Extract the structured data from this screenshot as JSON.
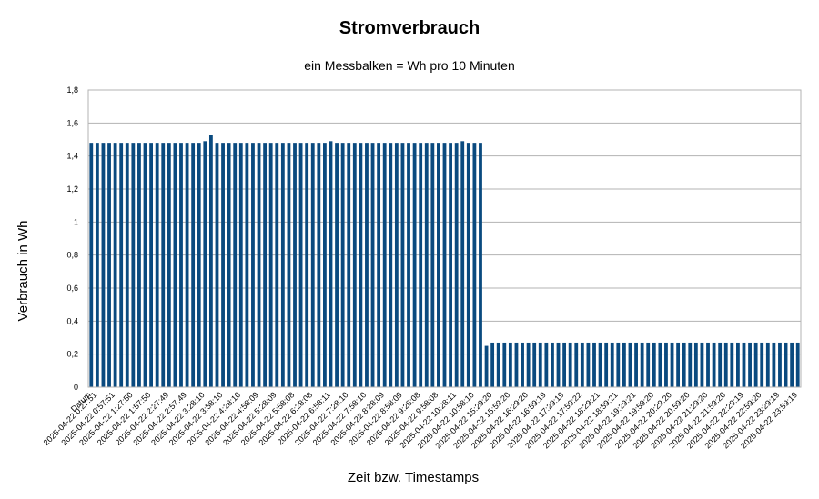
{
  "chart_data": {
    "type": "bar",
    "title": "Stromverbrauch",
    "subtitle": "ein Messbalken = Wh pro 10 Minuten",
    "xlabel": "Zeit bzw. Timestamps",
    "ylabel": "Verbrauch in Wh",
    "ylim": [
      0,
      1.8
    ],
    "yticks": [
      "0",
      "0,2",
      "0,4",
      "0,6",
      "0,8",
      "1",
      "1,2",
      "1,4",
      "1,6",
      "1,8"
    ],
    "grid": true,
    "bar_color": "#0a4a7f",
    "category_labels": [
      {
        "index": 0,
        "label": "Datum"
      },
      {
        "index": 1,
        "label": "2025-04-22 0:27:51"
      },
      {
        "index": 4,
        "label": "2025-04-22 0:57:51"
      },
      {
        "index": 7,
        "label": "2025-04-22 1:27:50"
      },
      {
        "index": 10,
        "label": "2025-04-22 1:57:50"
      },
      {
        "index": 13,
        "label": "2025-04-22 2:27:49"
      },
      {
        "index": 16,
        "label": "2025-04-22 2:57:49"
      },
      {
        "index": 19,
        "label": "2025-04-22 3:28:10"
      },
      {
        "index": 22,
        "label": "2025-04-22 3:58:10"
      },
      {
        "index": 25,
        "label": "2025-04-22 4:28:10"
      },
      {
        "index": 28,
        "label": "2025-04-22 4:58:09"
      },
      {
        "index": 31,
        "label": "2025-04-22 5:28:09"
      },
      {
        "index": 34,
        "label": "2025-04-22 5:58:08"
      },
      {
        "index": 37,
        "label": "2025-04-22 6:28:08"
      },
      {
        "index": 40,
        "label": "2025-04-22 6:58:11"
      },
      {
        "index": 43,
        "label": "2025-04-22 7:28:10"
      },
      {
        "index": 46,
        "label": "2025-04-22 7:58:10"
      },
      {
        "index": 49,
        "label": "2025-04-22 8:28:09"
      },
      {
        "index": 52,
        "label": "2025-04-22 8:58:09"
      },
      {
        "index": 55,
        "label": "2025-04-22 9:28:08"
      },
      {
        "index": 58,
        "label": "2025-04-22 9:58:08"
      },
      {
        "index": 61,
        "label": "2025-04-22 10:28:11"
      },
      {
        "index": 64,
        "label": "2025-04-22 10:58:10"
      },
      {
        "index": 67,
        "label": "2025-04-22 15:29:20"
      },
      {
        "index": 70,
        "label": "2025-04-22 15:59:20"
      },
      {
        "index": 73,
        "label": "2025-04-22 16:29:20"
      },
      {
        "index": 76,
        "label": "2025-04-22 16:59:19"
      },
      {
        "index": 79,
        "label": "2025-04-22 17:29:19"
      },
      {
        "index": 82,
        "label": "2025-04-22 17:59:22"
      },
      {
        "index": 85,
        "label": "2025-04-22 18:29:21"
      },
      {
        "index": 88,
        "label": "2025-04-22 18:59:21"
      },
      {
        "index": 91,
        "label": "2025-04-22 19:29:21"
      },
      {
        "index": 94,
        "label": "2025-04-22 19:59:20"
      },
      {
        "index": 97,
        "label": "2025-04-22 20:29:20"
      },
      {
        "index": 100,
        "label": "2025-04-22 20:59:20"
      },
      {
        "index": 103,
        "label": "2025-04-22 21:29:20"
      },
      {
        "index": 106,
        "label": "2025-04-22 21:59:20"
      },
      {
        "index": 109,
        "label": "2025-04-22 22:29:19"
      },
      {
        "index": 112,
        "label": "2025-04-22 22:59:20"
      },
      {
        "index": 115,
        "label": "2025-04-22 23:29:19"
      },
      {
        "index": 118,
        "label": "2025-04-22 23:59:19"
      }
    ],
    "values": [
      1.48,
      1.48,
      1.48,
      1.48,
      1.48,
      1.48,
      1.48,
      1.48,
      1.48,
      1.48,
      1.48,
      1.48,
      1.48,
      1.48,
      1.48,
      1.48,
      1.48,
      1.48,
      1.48,
      1.49,
      1.53,
      1.48,
      1.48,
      1.48,
      1.48,
      1.48,
      1.48,
      1.48,
      1.48,
      1.48,
      1.48,
      1.48,
      1.48,
      1.48,
      1.48,
      1.48,
      1.48,
      1.48,
      1.48,
      1.48,
      1.49,
      1.48,
      1.48,
      1.48,
      1.48,
      1.48,
      1.48,
      1.48,
      1.48,
      1.48,
      1.48,
      1.48,
      1.48,
      1.48,
      1.48,
      1.48,
      1.48,
      1.48,
      1.48,
      1.48,
      1.48,
      1.48,
      1.49,
      1.48,
      1.48,
      1.48,
      0.25,
      0.27,
      0.27,
      0.27,
      0.27,
      0.27,
      0.27,
      0.27,
      0.27,
      0.27,
      0.27,
      0.27,
      0.27,
      0.27,
      0.27,
      0.27,
      0.27,
      0.27,
      0.27,
      0.27,
      0.27,
      0.27,
      0.27,
      0.27,
      0.27,
      0.27,
      0.27,
      0.27,
      0.27,
      0.27,
      0.27,
      0.27,
      0.27,
      0.27,
      0.27,
      0.27,
      0.27,
      0.27,
      0.27,
      0.27,
      0.27,
      0.27,
      0.27,
      0.27,
      0.27,
      0.27,
      0.27,
      0.27,
      0.27,
      0.27,
      0.27,
      0.27,
      0.27
    ]
  }
}
